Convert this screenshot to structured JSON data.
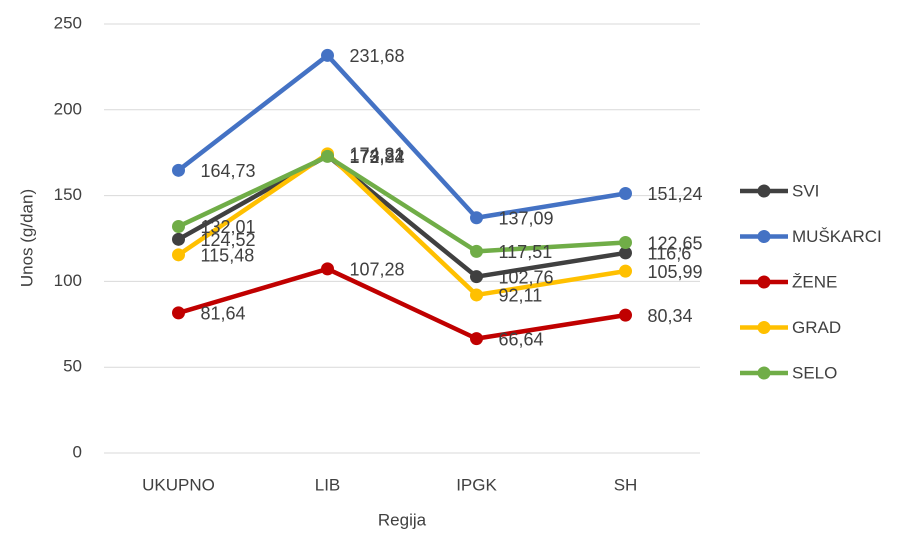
{
  "chart_data": {
    "type": "line",
    "x_label": "Regija",
    "y_label": "Unos (g/dan)",
    "categories": [
      "UKUPNO",
      "LIB",
      "IPGK",
      "SH"
    ],
    "series": [
      {
        "name": "SVI",
        "color": "#404040",
        "values": [
          124.52,
          173.22,
          102.76,
          116.6
        ],
        "value_labels": [
          "124,52",
          "173,22",
          "102,76",
          "116,6"
        ]
      },
      {
        "name": "MUŠKARCI",
        "color": "#4472c4",
        "values": [
          164.73,
          231.68,
          137.09,
          151.24
        ],
        "value_labels": [
          "164,73",
          "231,68",
          "137,09",
          "151,24"
        ]
      },
      {
        "name": "ŽENE",
        "color": "#c00000",
        "values": [
          81.64,
          107.28,
          66.64,
          80.34
        ],
        "value_labels": [
          "81,64",
          "107,28",
          "66,64",
          "80,34"
        ]
      },
      {
        "name": "GRAD",
        "color": "#ffc000",
        "values": [
          115.48,
          174.31,
          92.11,
          105.99
        ],
        "value_labels": [
          "115,48",
          "174,31",
          "92,11",
          "105,99"
        ]
      },
      {
        "name": "SELO",
        "color": "#70ad47",
        "values": [
          132.01,
          172.84,
          117.51,
          122.65
        ],
        "value_labels": [
          "132,01",
          "172,84",
          "117,51",
          "122,65"
        ]
      }
    ],
    "ylim": [
      0,
      250
    ],
    "yticks": [
      0,
      50,
      100,
      150,
      200,
      250
    ],
    "grid": true,
    "legend": "right"
  }
}
